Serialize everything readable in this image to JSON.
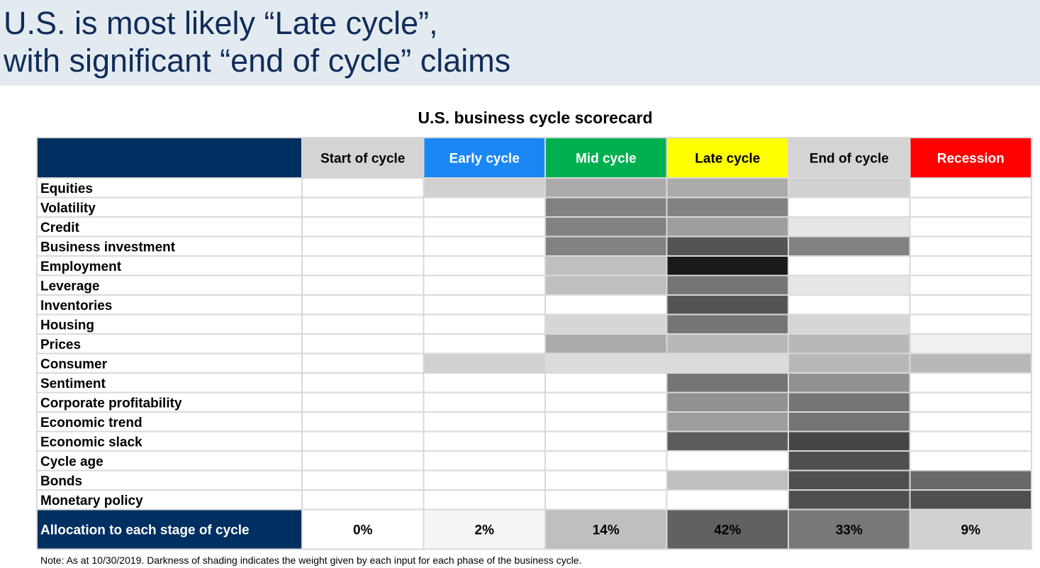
{
  "slide": {
    "title_line1": "U.S. is most likely “Late cycle”,",
    "title_line2": "with significant “end of cycle” claims",
    "note": "Note: As at 10/30/2019. Darkness of shading indicates the weight given by each input for each phase of the business cycle."
  },
  "chart_data": {
    "type": "heatmap",
    "title": "U.S. business cycle scorecard",
    "columns": [
      {
        "label": "Start of cycle",
        "header_color": "#d4d4d4",
        "text_color": "#000000"
      },
      {
        "label": "Early cycle",
        "header_color": "#1a87f5",
        "text_color": "#ffffff"
      },
      {
        "label": "Mid cycle",
        "header_color": "#00b050",
        "text_color": "#ffffff"
      },
      {
        "label": "Late cycle",
        "header_color": "#ffff00",
        "text_color": "#000000"
      },
      {
        "label": "End of cycle",
        "header_color": "#d4d4d4",
        "text_color": "#000000"
      },
      {
        "label": "Recession",
        "header_color": "#ff0000",
        "text_color": "#ffffff"
      }
    ],
    "rows": [
      {
        "label": "Equities",
        "weights": [
          0,
          0.18,
          0.33,
          0.33,
          0.18,
          0
        ]
      },
      {
        "label": "Volatility",
        "weights": [
          0,
          0,
          0.49,
          0.49,
          0,
          0
        ]
      },
      {
        "label": "Credit",
        "weights": [
          0,
          0,
          0.49,
          0.38,
          0.1,
          0
        ]
      },
      {
        "label": "Business investment",
        "weights": [
          0,
          0,
          0.49,
          0.67,
          0.49,
          0
        ]
      },
      {
        "label": "Employment",
        "weights": [
          0,
          0,
          0.25,
          0.9,
          0,
          0
        ]
      },
      {
        "label": "Leverage",
        "weights": [
          0,
          0,
          0.25,
          0.54,
          0.1,
          0
        ]
      },
      {
        "label": "Inventories",
        "weights": [
          0,
          0,
          0,
          0.67,
          0,
          0
        ]
      },
      {
        "label": "Housing",
        "weights": [
          0,
          0,
          0.16,
          0.54,
          0.16,
          0
        ]
      },
      {
        "label": "Prices",
        "weights": [
          0,
          0,
          0.33,
          0.28,
          0.28,
          0.06
        ]
      },
      {
        "label": "Consumer",
        "weights": [
          0,
          0.18,
          0.14,
          0.14,
          0.28,
          0.28
        ]
      },
      {
        "label": "Sentiment",
        "weights": [
          0,
          0,
          0,
          0.54,
          0.43,
          0
        ]
      },
      {
        "label": "Corporate profitability",
        "weights": [
          0,
          0,
          0,
          0.43,
          0.54,
          0
        ]
      },
      {
        "label": "Economic trend",
        "weights": [
          0,
          0,
          0,
          0.38,
          0.54,
          0
        ]
      },
      {
        "label": "Economic slack",
        "weights": [
          0,
          0,
          0,
          0.64,
          0.73,
          0
        ]
      },
      {
        "label": "Cycle age",
        "weights": [
          0,
          0,
          0,
          0,
          0.69,
          0
        ]
      },
      {
        "label": "Bonds",
        "weights": [
          0,
          0,
          0,
          0.25,
          0.69,
          0.59
        ]
      },
      {
        "label": "Monetary policy",
        "weights": [
          0,
          0,
          0,
          0,
          0.69,
          0.69
        ]
      }
    ],
    "allocation": {
      "label": "Allocation to each stage of cycle",
      "values": [
        "0%",
        "2%",
        "14%",
        "42%",
        "33%",
        "9%"
      ],
      "weights": [
        0,
        0.04,
        0.25,
        0.62,
        0.53,
        0.18
      ]
    },
    "colors": {
      "navy": "#002f62",
      "grid": "#d9d9d9"
    }
  }
}
